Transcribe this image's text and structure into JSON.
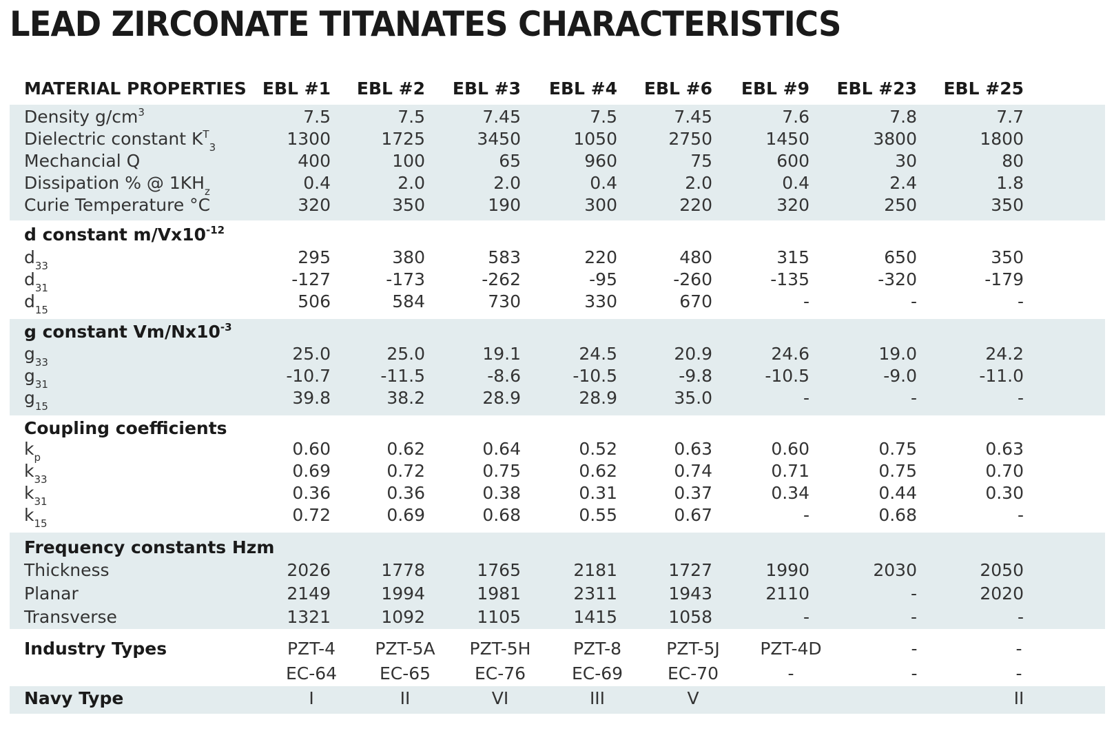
{
  "title": "LEAD ZIRCONATE TITANATES CHARACTERISTICS",
  "header": {
    "label": "MATERIAL PROPERTIES",
    "columns": [
      "EBL #1",
      "EBL #2",
      "EBL #3",
      "EBL #4",
      "EBL #6",
      "EBL #9",
      "EBL #23",
      "EBL #25"
    ]
  },
  "sections": {
    "general": {
      "rows": [
        {
          "label": "Density g/cm",
          "label_sup": "3",
          "label_sub": "",
          "values": [
            "7.5",
            "7.5",
            "7.45",
            "7.5",
            "7.45",
            "7.6",
            "7.8",
            "7.7"
          ]
        },
        {
          "label": "Dielectric constant K",
          "label_sup": "T",
          "label_sub": "3",
          "values": [
            "1300",
            "1725",
            "3450",
            "1050",
            "2750",
            "1450",
            "3800",
            "1800"
          ]
        },
        {
          "label": "Mechancial Q",
          "label_sup": "",
          "label_sub": "",
          "values": [
            "400",
            "100",
            "65",
            "960",
            "75",
            "600",
            "30",
            "80"
          ]
        },
        {
          "label": "Dissipation % @ 1KH",
          "label_sup": "",
          "label_sub": "z",
          "values": [
            "0.4",
            "2.0",
            "2.0",
            "0.4",
            "2.0",
            "0.4",
            "2.4",
            "1.8"
          ]
        },
        {
          "label": "Curie Temperature °C",
          "label_sup": "",
          "label_sub": "",
          "values": [
            "320",
            "350",
            "190",
            "300",
            "220",
            "320",
            "250",
            "350"
          ]
        }
      ]
    },
    "d_constant": {
      "heading": "d constant m/Vx10",
      "heading_sup": "-12",
      "rows": [
        {
          "label": "d",
          "label_sub": "33",
          "values": [
            "295",
            "380",
            "583",
            "220",
            "480",
            "315",
            "650",
            "350"
          ]
        },
        {
          "label": "d",
          "label_sub": "31",
          "values": [
            "-127",
            "-173",
            "-262",
            "-95",
            "-260",
            "-135",
            "-320",
            "-179"
          ]
        },
        {
          "label": "d",
          "label_sub": "15",
          "values": [
            "506",
            "584",
            "730",
            "330",
            "670",
            "-",
            "-",
            "-"
          ]
        }
      ]
    },
    "g_constant": {
      "heading": "g constant Vm/Nx10",
      "heading_sup": "-3",
      "rows": [
        {
          "label": "g",
          "label_sub": "33",
          "values": [
            "25.0",
            "25.0",
            "19.1",
            "24.5",
            "20.9",
            "24.6",
            "19.0",
            "24.2"
          ]
        },
        {
          "label": "g",
          "label_sub": "31",
          "values": [
            "-10.7",
            "-11.5",
            "-8.6",
            "-10.5",
            "-9.8",
            "-10.5",
            "-9.0",
            "-11.0"
          ]
        },
        {
          "label": "g",
          "label_sub": "15",
          "values": [
            "39.8",
            "38.2",
            "28.9",
            "28.9",
            "35.0",
            "-",
            "-",
            "-"
          ]
        }
      ]
    },
    "coupling": {
      "heading": "Coupling coefficients",
      "rows": [
        {
          "label": "k",
          "label_sub": "p",
          "values": [
            "0.60",
            "0.62",
            "0.64",
            "0.52",
            "0.63",
            "0.60",
            "0.75",
            "0.63"
          ]
        },
        {
          "label": "k",
          "label_sub": "33",
          "values": [
            "0.69",
            "0.72",
            "0.75",
            "0.62",
            "0.74",
            "0.71",
            "0.75",
            "0.70"
          ]
        },
        {
          "label": "k",
          "label_sub": "31",
          "values": [
            "0.36",
            "0.36",
            "0.38",
            "0.31",
            "0.37",
            "0.34",
            "0.44",
            "0.30"
          ]
        },
        {
          "label": "k",
          "label_sub": "15",
          "values": [
            "0.72",
            "0.69",
            "0.68",
            "0.55",
            "0.67",
            "-",
            "0.68",
            "-"
          ]
        }
      ]
    },
    "frequency": {
      "heading": "Frequency constants Hzm",
      "rows": [
        {
          "label": "Thickness",
          "values": [
            "2026",
            "1778",
            "1765",
            "2181",
            "1727",
            "1990",
            "2030",
            "2050"
          ]
        },
        {
          "label": "Planar",
          "values": [
            "2149",
            "1994",
            "1981",
            "2311",
            "1943",
            "2110",
            "-",
            "2020"
          ]
        },
        {
          "label": "Transverse",
          "values": [
            "1321",
            "1092",
            "1105",
            "1415",
            "1058",
            "-",
            "-",
            "-"
          ]
        }
      ]
    },
    "industry": {
      "heading": "Industry Types",
      "rows": [
        {
          "values": [
            "PZT-4",
            "PZT-5A",
            "PZT-5H",
            "PZT-8",
            "PZT-5J",
            "PZT-4D",
            "-",
            "-"
          ]
        },
        {
          "values": [
            "EC-64",
            "EC-65",
            "EC-76",
            "EC-69",
            "EC-70",
            "-",
            "-",
            "-"
          ]
        }
      ]
    },
    "navy": {
      "heading": "Navy Type",
      "values": [
        "I",
        "II",
        "VI",
        "III",
        "V",
        "",
        "",
        "II"
      ]
    }
  }
}
